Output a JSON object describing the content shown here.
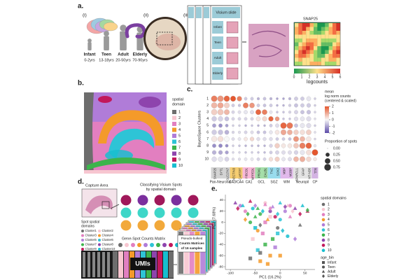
{
  "panel_a": {
    "label": "a.",
    "steps": [
      "(i)",
      "(ii)",
      "(iii)"
    ],
    "ages": [
      {
        "group": "Infant",
        "range": "0-2yrs"
      },
      {
        "group": "Teen",
        "range": "13-18yrs"
      },
      {
        "group": "Adult",
        "range": "20-50yrs"
      },
      {
        "group": "Elderly",
        "range": "70-90yrs"
      }
    ],
    "slide_title": "Visium slide",
    "slide_rows": [
      "Infant",
      "Teen",
      "Adult",
      "Elderly"
    ],
    "gene": "SNAP25",
    "colorbar_label": "logcounts",
    "colorbar_lim": [
      0,
      6
    ],
    "colorbar_ticks": [
      0,
      1,
      2,
      3,
      4,
      5,
      6
    ]
  },
  "panel_b": {
    "label": "b.",
    "legend_title": [
      "spatial",
      "domain"
    ],
    "domains": [
      "1",
      "2",
      "3",
      "4",
      "5",
      "6",
      "7",
      "8",
      "9",
      "10"
    ],
    "colors": [
      "#6d6d6d",
      "#f7c6d0",
      "#e27fc0",
      "#f49a2a",
      "#b07cd8",
      "#2ec4d6",
      "#3cb44b",
      "#8e44ad",
      "#c2185b",
      "#17becf"
    ]
  },
  "panel_c": {
    "label": "c.",
    "y_label": "BayesSpace Clusters",
    "row_labels": [
      "1",
      "2",
      "3",
      "4",
      "5",
      "6",
      "7",
      "8",
      "9",
      "10"
    ],
    "groups": [
      {
        "name": "Pan-Neuronal",
        "color": "#c8c8c8",
        "genes": [
          "SNAP25",
          "SYT1",
          "SLC17A7"
        ]
      },
      {
        "name": "CA3/CA4",
        "color": "#f2c14e",
        "genes": [
          "NECTIN3",
          "CARTPT"
        ]
      },
      {
        "name": "CA1",
        "color": "#f7a8d0",
        "genes": [
          "FIBCD1",
          "MPPED1"
        ]
      },
      {
        "name": "GCL",
        "color": "#8fd694",
        "genes": [
          "PROX1",
          "CALB1"
        ]
      },
      {
        "name": "SGZ",
        "color": "#7fd3e8",
        "genes": [
          "TNC",
          "SOX2"
        ]
      },
      {
        "name": "WM",
        "color": "#d9a7e6",
        "genes": [
          "MBP",
          "MOBP"
        ]
      },
      {
        "name": "Neuropil",
        "color": "#dcdcdc",
        "genes": [
          "SPARCL1",
          "GFAP",
          "MT-ND5"
        ]
      },
      {
        "name": "CP",
        "color": "#c9a0dc",
        "genes": [
          "TTR"
        ]
      }
    ],
    "expression": [
      [
        1.5,
        1.2,
        1.8,
        2,
        1.5,
        -0.5,
        -0.5,
        -0.8,
        -0.6,
        -0.8,
        -1,
        -1,
        -0.8,
        -0.5,
        -0.5,
        -0.2,
        -0.5
      ],
      [
        0.8,
        1,
        0.5,
        -0.5,
        -0.6,
        1.5,
        1.2,
        -0.5,
        -0.6,
        -0.5,
        -0.8,
        -0.8,
        -0.5,
        -0.6,
        -0.5,
        -0.5,
        -0.5
      ],
      [
        0.5,
        0.6,
        0.8,
        -0.4,
        -0.3,
        -0.2,
        -0.3,
        1.8,
        1.5,
        -0.2,
        -0.6,
        -0.6,
        -0.4,
        -0.4,
        -0.6,
        -0.6,
        -0.4
      ],
      [
        -0.5,
        -0.4,
        -0.6,
        -0.4,
        -0.4,
        -0.4,
        -0.4,
        0.2,
        0.4,
        1.8,
        1.2,
        -0.6,
        -0.6,
        -0.3,
        -0.2,
        -0.3,
        -0.3
      ],
      [
        -1,
        -1.2,
        -1,
        -0.5,
        -0.5,
        -0.8,
        -0.6,
        -0.8,
        -0.8,
        -0.5,
        -0.3,
        1.8,
        1.6,
        -0.6,
        -0.2,
        -0.3,
        -0.5
      ],
      [
        -0.5,
        -0.6,
        -0.8,
        -0.4,
        -0.3,
        -0.4,
        -0.3,
        -0.6,
        -0.6,
        -0.2,
        0.2,
        1,
        0.9,
        0.5,
        0.3,
        0.5,
        -0.3
      ],
      [
        0.2,
        0.3,
        0,
        -0.3,
        -0.2,
        0.2,
        0.4,
        -0.3,
        -0.3,
        -0.3,
        -0.5,
        -0.5,
        -0.6,
        1.2,
        0.8,
        0.2,
        -0.4
      ],
      [
        -1.2,
        -1.3,
        -1.2,
        -0.5,
        -0.6,
        -0.8,
        -0.7,
        -0.8,
        -0.8,
        -0.4,
        0.5,
        0.2,
        0.2,
        0.6,
        1.5,
        1.8,
        -0.2
      ],
      [
        -0.8,
        -0.9,
        -1,
        -0.4,
        -0.4,
        -0.6,
        -0.5,
        -0.6,
        -0.7,
        -0.5,
        -0.4,
        -0.3,
        -0.3,
        -0.4,
        -0.2,
        0.3,
        2
      ],
      [
        -0.3,
        -0.2,
        -0.4,
        -0.3,
        -0.3,
        -0.2,
        -0.2,
        -0.4,
        -0.4,
        0.3,
        0.5,
        -0.2,
        -0.3,
        0.8,
        0.9,
        0.4,
        0.2
      ]
    ],
    "proportion": [
      [
        0.75,
        0.75,
        0.7,
        0.6,
        0.5,
        0.2,
        0.2,
        0.15,
        0.2,
        0.15,
        0.1,
        0.1,
        0.15,
        0.3,
        0.3,
        0.4,
        0.1
      ],
      [
        0.7,
        0.7,
        0.6,
        0.2,
        0.15,
        0.6,
        0.55,
        0.2,
        0.2,
        0.2,
        0.1,
        0.1,
        0.15,
        0.3,
        0.3,
        0.35,
        0.1
      ],
      [
        0.7,
        0.7,
        0.6,
        0.2,
        0.2,
        0.3,
        0.3,
        0.6,
        0.55,
        0.2,
        0.1,
        0.1,
        0.15,
        0.3,
        0.3,
        0.35,
        0.1
      ],
      [
        0.5,
        0.5,
        0.4,
        0.2,
        0.2,
        0.2,
        0.2,
        0.4,
        0.45,
        0.5,
        0.4,
        0.1,
        0.1,
        0.35,
        0.4,
        0.45,
        0.1
      ],
      [
        0.3,
        0.3,
        0.2,
        0.1,
        0.1,
        0.1,
        0.1,
        0.1,
        0.1,
        0.2,
        0.3,
        0.75,
        0.75,
        0.3,
        0.45,
        0.45,
        0.1
      ],
      [
        0.5,
        0.5,
        0.4,
        0.15,
        0.15,
        0.2,
        0.2,
        0.2,
        0.2,
        0.25,
        0.4,
        0.6,
        0.55,
        0.5,
        0.5,
        0.55,
        0.1
      ],
      [
        0.65,
        0.65,
        0.55,
        0.2,
        0.2,
        0.3,
        0.35,
        0.25,
        0.25,
        0.25,
        0.2,
        0.2,
        0.2,
        0.6,
        0.55,
        0.5,
        0.1
      ],
      [
        0.3,
        0.3,
        0.2,
        0.1,
        0.1,
        0.1,
        0.1,
        0.1,
        0.1,
        0.25,
        0.5,
        0.4,
        0.4,
        0.55,
        0.7,
        0.7,
        0.15
      ],
      [
        0.35,
        0.35,
        0.25,
        0.1,
        0.1,
        0.1,
        0.1,
        0.1,
        0.1,
        0.2,
        0.3,
        0.3,
        0.3,
        0.35,
        0.45,
        0.55,
        0.75
      ],
      [
        0.5,
        0.5,
        0.4,
        0.15,
        0.15,
        0.2,
        0.2,
        0.2,
        0.2,
        0.35,
        0.45,
        0.3,
        0.3,
        0.55,
        0.6,
        0.5,
        0.25
      ]
    ],
    "color_title": [
      "mean",
      "log norm counts",
      "(centered & scaled)"
    ],
    "color_lim": [
      -2,
      2
    ],
    "color_ticks": [
      2,
      1,
      0,
      -1,
      -2
    ],
    "size_title": "Proportion of spots",
    "size_ticks": [
      {
        "value": 0,
        "label": "0.00"
      },
      0.25,
      {
        "value": 0.5,
        "label": "0.50"
      },
      0.75
    ]
  },
  "panel_d": {
    "label": "d.",
    "capture": "Capture Area",
    "spot_label": [
      "Spot spatial",
      "domains"
    ],
    "classify": [
      "Classifying Visium Spots",
      "by spatial domain"
    ],
    "clusters": [
      "Cluster1",
      "Cluster2",
      "Cluster3",
      "Cluster4",
      "Cluster5",
      "Cluster6",
      "Cluster7",
      "Cluster8",
      "Cluster9",
      "Cluster10"
    ],
    "matrix_label": "Gene-Spot Counts Matrix",
    "umis": "UMIs",
    "pseudo": [
      "Pseudo-bulked",
      "Counts Matrices",
      "of 16 samples"
    ]
  },
  "panel_e": {
    "label": "e.",
    "type": "scatter",
    "x_label": "PC1 (16.2%)",
    "y_label": "PC2 (7.68%)",
    "xlim": [
      -110,
      70
    ],
    "ylim": [
      -85,
      50
    ],
    "xticks": [
      -100,
      -50,
      0,
      50
    ],
    "yticks": [
      40,
      20,
      0,
      -20,
      -40,
      -60,
      -80
    ],
    "legend_title": "spatial domains",
    "domains": [
      "1",
      "2",
      "3",
      "4",
      "5",
      "6",
      "7",
      "8",
      "9",
      "10"
    ],
    "domain_colors": [
      "#6d6d6d",
      "#f7c6d0",
      "#e27fc0",
      "#f49a2a",
      "#b07cd8",
      "#2ec4d6",
      "#3cb44b",
      "#8e44ad",
      "#c2185b",
      "#17becf"
    ],
    "age_title": "age_bin",
    "series": [
      {
        "name": "Infant",
        "shape": "square",
        "x": [
          -60,
          -40,
          -20,
          -45,
          -30,
          -55,
          -35,
          -10,
          -25,
          -50,
          -15,
          -40,
          0,
          -30,
          -20,
          -5
        ],
        "y": [
          -65,
          -70,
          -60,
          -50,
          -40,
          -30,
          -20,
          -45,
          -75,
          -10,
          -30,
          -55,
          -60,
          0,
          10,
          -20
        ],
        "colors": [
          "#6d6d6d",
          "#f49a2a",
          "#f49a2a",
          "#2ec4d6",
          "#3cb44b",
          "#f7c6d0",
          "#e27fc0",
          "#b07cd8",
          "#f49a2a",
          "#17becf",
          "#3cb44b",
          "#6d6d6d",
          "#f49a2a",
          "#e27fc0",
          "#f7c6d0",
          "#2ec4d6"
        ]
      },
      {
        "name": "Teen",
        "shape": "circle",
        "x": [
          -80,
          -70,
          -55,
          -40,
          -30,
          -20,
          -10,
          0,
          10,
          20,
          -60,
          -45,
          -5,
          15
        ],
        "y": [
          30,
          20,
          25,
          15,
          35,
          20,
          10,
          5,
          20,
          30,
          0,
          -15,
          -10,
          -25
        ],
        "colors": [
          "#b07cd8",
          "#e27fc0",
          "#17becf",
          "#3cb44b",
          "#f7c6d0",
          "#8e44ad",
          "#c2185b",
          "#2ec4d6",
          "#b07cd8",
          "#e27fc0",
          "#3cb44b",
          "#f49a2a",
          "#6d6d6d",
          "#17becf"
        ]
      },
      {
        "name": "Adult",
        "shape": "triangle",
        "x": [
          -90,
          -75,
          -60,
          -45,
          -30,
          -15,
          0,
          15,
          30,
          45,
          55,
          -50,
          -25,
          20,
          40
        ],
        "y": [
          35,
          30,
          38,
          25,
          32,
          28,
          35,
          30,
          25,
          30,
          20,
          10,
          5,
          10,
          -5
        ],
        "colors": [
          "#8e44ad",
          "#17becf",
          "#c2185b",
          "#3cb44b",
          "#e27fc0",
          "#b07cd8",
          "#2ec4d6",
          "#f7c6d0",
          "#8e44ad",
          "#17becf",
          "#c2185b",
          "#3cb44b",
          "#f49a2a",
          "#e27fc0",
          "#6d6d6d"
        ]
      },
      {
        "name": "Elderly",
        "shape": "diamond",
        "x": [
          -85,
          -65,
          -50,
          -35,
          -20,
          -5,
          10,
          25,
          40,
          55,
          -70,
          -40,
          5,
          30
        ],
        "y": [
          25,
          15,
          30,
          20,
          25,
          15,
          28,
          20,
          15,
          22,
          5,
          -5,
          -15,
          -30
        ],
        "colors": [
          "#c2185b",
          "#3cb44b",
          "#b07cd8",
          "#17becf",
          "#e27fc0",
          "#2ec4d6",
          "#8e44ad",
          "#f7c6d0",
          "#c2185b",
          "#3cb44b",
          "#f49a2a",
          "#6d6d6d",
          "#17becf",
          "#b07cd8"
        ]
      }
    ]
  }
}
